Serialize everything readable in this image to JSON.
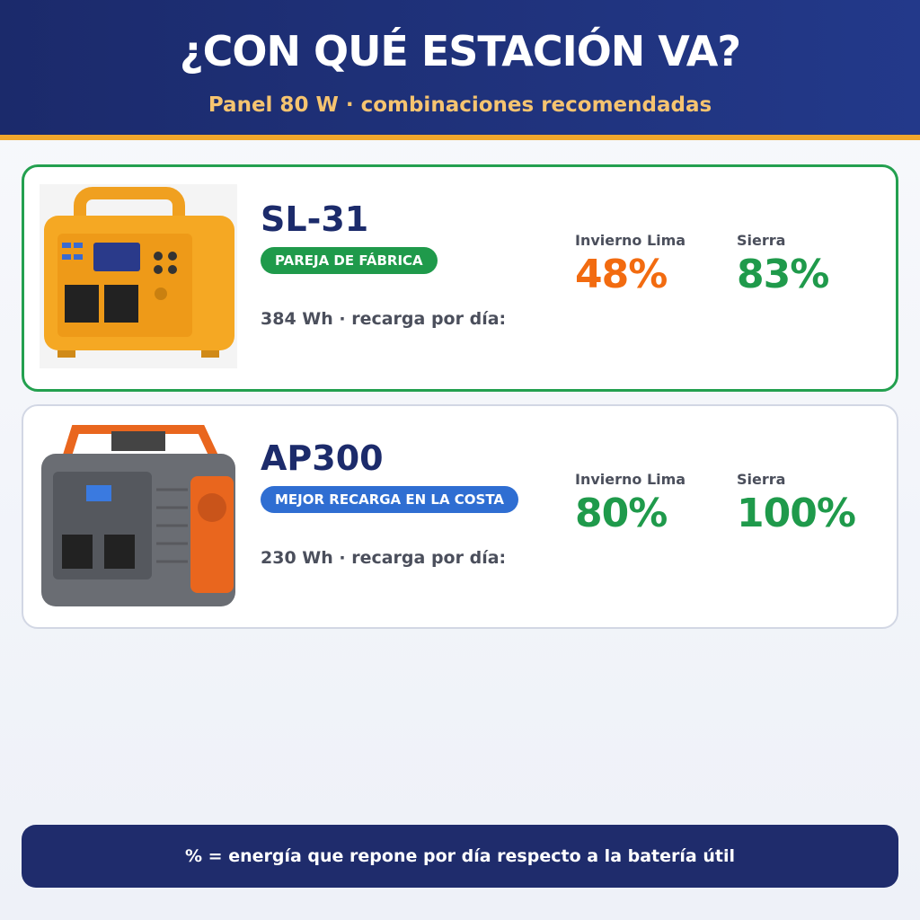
{
  "header": {
    "title": "¿CON QUÉ ESTACIÓN VA?",
    "subtitle": "Panel 80 W · combinaciones recomendadas"
  },
  "cards": [
    {
      "name": "SL-31",
      "badge": "PAREJA DE FÁBRICA",
      "spec": "384 Wh · recarga por día:",
      "stats": [
        {
          "label": "Invierno Lima",
          "value": "48%"
        },
        {
          "label": "Sierra",
          "value": "83%"
        }
      ]
    },
    {
      "name": "AP300",
      "badge": "MEJOR RECARGA EN LA COSTA",
      "spec": "230 Wh · recarga por día:",
      "stats": [
        {
          "label": "Invierno Lima",
          "value": "80%"
        },
        {
          "label": "Sierra",
          "value": "100%"
        }
      ]
    }
  ],
  "footer": {
    "note": "% = energía que repone por día respecto a la batería útil"
  }
}
